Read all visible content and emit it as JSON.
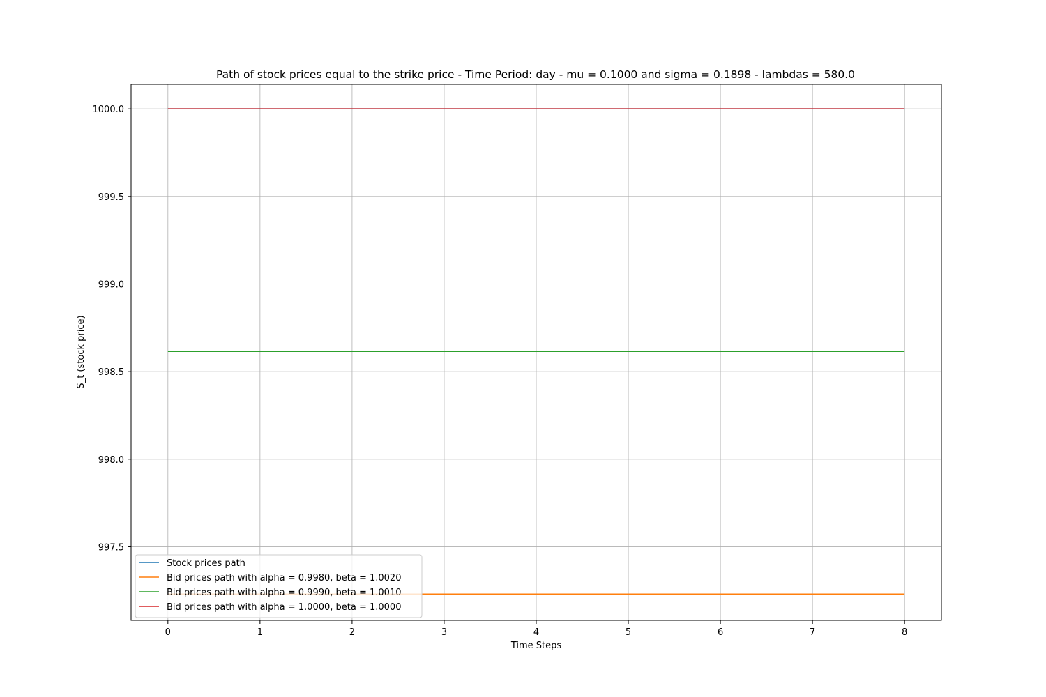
{
  "chart_data": {
    "type": "line",
    "title": "Path of stock prices equal to the strike price - Time Period: day - mu = 0.1000 and sigma = 0.1898 - lambdas = 580.0",
    "xlabel": "Time Steps",
    "ylabel": "S_t (stock price)",
    "x": [
      0,
      1,
      2,
      3,
      4,
      5,
      6,
      7,
      8
    ],
    "xlim": [
      -0.4,
      8.4
    ],
    "ylim": [
      997.08,
      1000.14
    ],
    "xticks": [
      0,
      1,
      2,
      3,
      4,
      5,
      6,
      7,
      8
    ],
    "yticks": [
      997.5,
      998.0,
      998.5,
      999.0,
      999.5,
      1000.0
    ],
    "xtick_labels": [
      "0",
      "1",
      "2",
      "3",
      "4",
      "5",
      "6",
      "7",
      "8"
    ],
    "ytick_labels": [
      "997.5",
      "998.0",
      "998.5",
      "999.0",
      "999.5",
      "1000.0"
    ],
    "grid": true,
    "legend_position": "lower-left",
    "series": [
      {
        "name": "Stock prices path",
        "color": "#1f77b4",
        "values": [
          1000.0,
          1000.0,
          1000.0,
          1000.0,
          1000.0,
          1000.0,
          1000.0,
          1000.0,
          1000.0
        ]
      },
      {
        "name": "Bid prices path with alpha = 0.9980, beta = 1.0020",
        "color": "#ff7f0e",
        "values": [
          997.23,
          997.23,
          997.23,
          997.23,
          997.23,
          997.23,
          997.23,
          997.23,
          997.23
        ]
      },
      {
        "name": "Bid prices path with alpha = 0.9990, beta = 1.0010",
        "color": "#2ca02c",
        "values": [
          998.615,
          998.615,
          998.615,
          998.615,
          998.615,
          998.615,
          998.615,
          998.615,
          998.615
        ]
      },
      {
        "name": "Bid prices path with alpha = 1.0000, beta = 1.0000",
        "color": "#d62728",
        "values": [
          1000.0,
          1000.0,
          1000.0,
          1000.0,
          1000.0,
          1000.0,
          1000.0,
          1000.0,
          1000.0
        ]
      }
    ]
  }
}
